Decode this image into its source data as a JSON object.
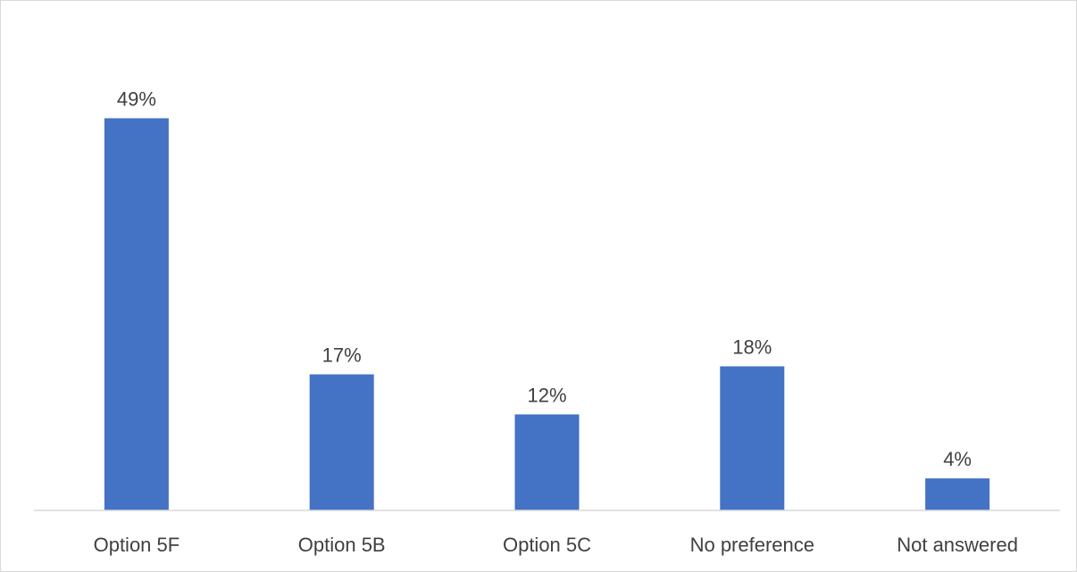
{
  "chart_data": {
    "type": "bar",
    "title": "",
    "xlabel": "",
    "ylabel": "",
    "categories": [
      "Option 5F",
      "Option 5B",
      "Option 5C",
      "No preference",
      "Not answered"
    ],
    "values": [
      49,
      17,
      12,
      18,
      4
    ],
    "data_labels": [
      "49%",
      "17%",
      "12%",
      "18%",
      "4%"
    ],
    "unit": "%",
    "ylim": [
      0,
      60
    ],
    "grid": false,
    "legend": "none",
    "colors": {
      "bar": "#4472C4",
      "axis": "#d9d9d9",
      "text": "#404040"
    }
  }
}
